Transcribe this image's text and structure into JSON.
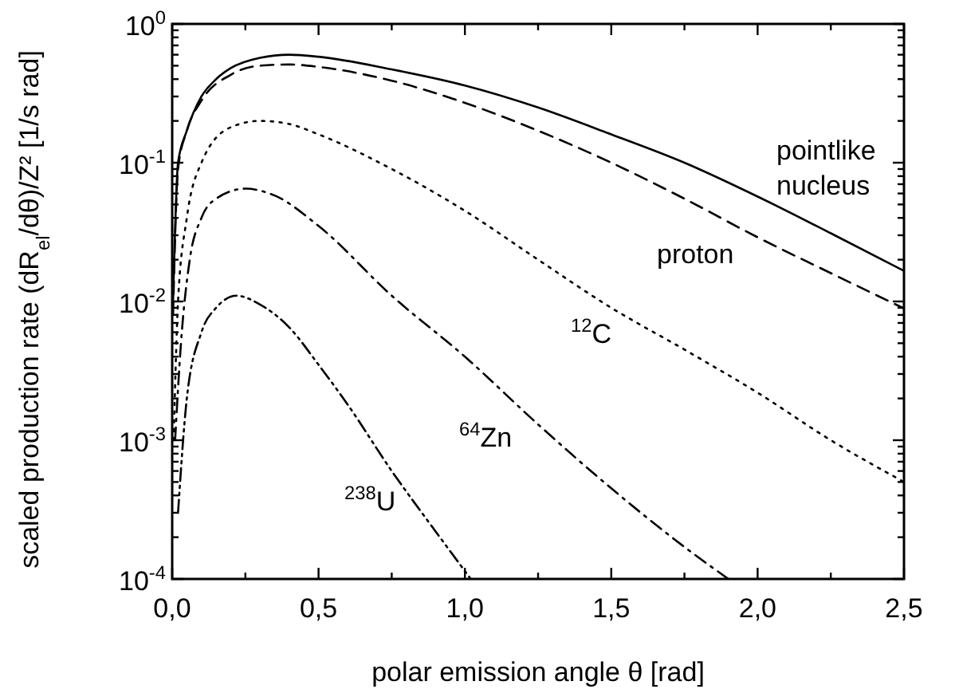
{
  "chart_data": {
    "type": "line",
    "xlabel": "polar emission angle θ [rad]",
    "ylabel": "scaled production rate (dR$_{el}$/dθ)/Z² [1/s rad]",
    "log": "y",
    "grid": false,
    "xlim": [
      0,
      2.5
    ],
    "ylim": [
      0.0001,
      1
    ],
    "xticks": [
      {
        "value": 0,
        "label": "0,0"
      },
      {
        "value": 0.25,
        "label": null
      },
      {
        "value": 0.5,
        "label": "0,5"
      },
      {
        "value": 0.75,
        "label": null
      },
      {
        "value": 1,
        "label": "1,0"
      },
      {
        "value": 1.25,
        "label": null
      },
      {
        "value": 1.5,
        "label": "1,5"
      },
      {
        "value": 1.75,
        "label": null
      },
      {
        "value": 2,
        "label": "2,0"
      },
      {
        "value": 2.25,
        "label": null
      },
      {
        "value": 2.5,
        "label": "2,5"
      }
    ],
    "yticks": [
      {
        "value": 0.0001,
        "label": "10$^{-4}$"
      },
      {
        "value": 0.0002,
        "label": null
      },
      {
        "value": 0.0003,
        "label": null
      },
      {
        "value": 0.0004,
        "label": null
      },
      {
        "value": 0.0005,
        "label": null
      },
      {
        "value": 0.0006,
        "label": null
      },
      {
        "value": 0.0007,
        "label": null
      },
      {
        "value": 0.0008,
        "label": null
      },
      {
        "value": 0.0009,
        "label": null
      },
      {
        "value": 0.001,
        "label": "10$^{-3}$"
      },
      {
        "value": 0.002,
        "label": null
      },
      {
        "value": 0.003,
        "label": null
      },
      {
        "value": 0.004,
        "label": null
      },
      {
        "value": 0.005,
        "label": null
      },
      {
        "value": 0.006,
        "label": null
      },
      {
        "value": 0.007,
        "label": null
      },
      {
        "value": 0.008,
        "label": null
      },
      {
        "value": 0.009,
        "label": null
      },
      {
        "value": 0.01,
        "label": "10$^{-2}$"
      },
      {
        "value": 0.02,
        "label": null
      },
      {
        "value": 0.03,
        "label": null
      },
      {
        "value": 0.04,
        "label": null
      },
      {
        "value": 0.05,
        "label": null
      },
      {
        "value": 0.06,
        "label": null
      },
      {
        "value": 0.07,
        "label": null
      },
      {
        "value": 0.08,
        "label": null
      },
      {
        "value": 0.09,
        "label": null
      },
      {
        "value": 0.1,
        "label": "10$^{-1}$"
      },
      {
        "value": 0.2,
        "label": null
      },
      {
        "value": 0.3,
        "label": null
      },
      {
        "value": 0.4,
        "label": null
      },
      {
        "value": 0.5,
        "label": null
      },
      {
        "value": 0.6,
        "label": null
      },
      {
        "value": 0.7,
        "label": null
      },
      {
        "value": 0.8,
        "label": null
      },
      {
        "value": 0.9,
        "label": null
      },
      {
        "value": 1,
        "label": "10$^{0}$"
      }
    ],
    "series": [
      {
        "name": "pointlike\nnucleus",
        "color": "#000000",
        "line_style": "solid",
        "x": [
          0.003,
          0.02,
          0.05,
          0.1,
          0.15,
          0.2,
          0.3,
          0.4,
          0.5,
          0.75,
          1,
          1.25,
          1.5,
          1.75,
          2,
          2.25,
          2.5
        ],
        "values": [
          0.01,
          0.1,
          0.17,
          0.3,
          0.4,
          0.48,
          0.57,
          0.6,
          0.58,
          0.47,
          0.36,
          0.25,
          0.16,
          0.1,
          0.057,
          0.031,
          0.0166
        ]
      },
      {
        "name": "proton",
        "color": "#000000",
        "line_style": "dashed",
        "x": [
          0.003,
          0.02,
          0.05,
          0.1,
          0.2,
          0.3,
          0.4,
          0.5,
          0.75,
          1,
          1.25,
          1.5,
          1.75,
          2,
          2.25,
          2.5
        ],
        "values": [
          0.008,
          0.09,
          0.17,
          0.28,
          0.43,
          0.5,
          0.51,
          0.49,
          0.39,
          0.27,
          0.17,
          0.1,
          0.055,
          0.029,
          0.016,
          0.0089
        ]
      },
      {
        "name": "$^{12}$C",
        "color": "#000000",
        "line_style": "dotted",
        "x": [
          0.005,
          0.02,
          0.05,
          0.1,
          0.2,
          0.3,
          0.4,
          0.5,
          0.75,
          1,
          1.25,
          1.5,
          1.75,
          2,
          2.25,
          2.5
        ],
        "values": [
          0.001,
          0.01,
          0.04,
          0.1,
          0.18,
          0.2,
          0.19,
          0.16,
          0.09,
          0.045,
          0.02,
          0.009,
          0.0045,
          0.0022,
          0.001,
          0.0005
        ]
      },
      {
        "name": "$^{64}$Zn",
        "color": "#000000",
        "line_style": "dashdot",
        "x": [
          0.01,
          0.03,
          0.06,
          0.1,
          0.15,
          0.25,
          0.35,
          0.5,
          0.75,
          1,
          1.25,
          1.5,
          1.75,
          1.9
        ],
        "values": [
          0.001,
          0.005,
          0.02,
          0.04,
          0.055,
          0.065,
          0.058,
          0.035,
          0.011,
          0.004,
          0.0013,
          0.00045,
          0.00017,
          0.0001
        ]
      },
      {
        "name": "$^{238}$U",
        "color": "#000000",
        "line_style": "dashdotdot",
        "x": [
          0.02,
          0.05,
          0.1,
          0.15,
          0.22,
          0.3,
          0.4,
          0.5,
          0.6,
          0.75,
          0.9,
          1.02
        ],
        "values": [
          0.0003,
          0.002,
          0.006,
          0.009,
          0.011,
          0.0095,
          0.0065,
          0.0035,
          0.0018,
          0.0006,
          0.00022,
          0.0001
        ]
      }
    ]
  }
}
